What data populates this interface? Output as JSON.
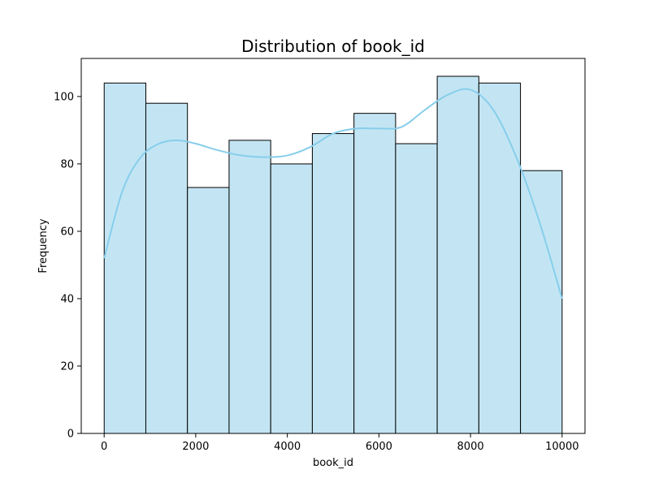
{
  "chart_data": {
    "type": "bar",
    "title": "Distribution of book_id",
    "xlabel": "book_id",
    "ylabel": "Frequency",
    "xlim": [
      -500,
      10500
    ],
    "ylim": [
      0,
      111.3
    ],
    "xticks": [
      0,
      2000,
      4000,
      6000,
      8000,
      10000
    ],
    "yticks": [
      0,
      20,
      40,
      60,
      80,
      100
    ],
    "bins": [
      {
        "x0": 1,
        "x1": 910,
        "count": 104
      },
      {
        "x0": 910,
        "x1": 1819,
        "count": 98
      },
      {
        "x0": 1819,
        "x1": 2728,
        "count": 73
      },
      {
        "x0": 2728,
        "x1": 3637,
        "count": 87
      },
      {
        "x0": 3637,
        "x1": 4546,
        "count": 80
      },
      {
        "x0": 4546,
        "x1": 5455,
        "count": 89
      },
      {
        "x0": 5455,
        "x1": 6364,
        "count": 95
      },
      {
        "x0": 6364,
        "x1": 7273,
        "count": 86
      },
      {
        "x0": 7273,
        "x1": 8182,
        "count": 106
      },
      {
        "x0": 8182,
        "x1": 9091,
        "count": 104
      },
      {
        "x0": 9091,
        "x1": 10000,
        "count": 78
      }
    ],
    "kde": {
      "x": [
        1,
        400,
        800,
        1200,
        1600,
        2000,
        2500,
        3000,
        3500,
        4000,
        4500,
        5000,
        5500,
        6000,
        6500,
        7000,
        7500,
        8000,
        8500,
        9000,
        9500,
        10000
      ],
      "y": [
        52,
        72,
        82,
        86,
        87,
        86,
        84,
        82.5,
        82,
        82.5,
        85,
        89,
        90.5,
        90.5,
        91,
        96,
        100.5,
        102,
        96,
        82,
        63,
        40
      ]
    },
    "grid": false,
    "colors": {
      "bar_fill": "#c3e5f3",
      "bar_edge": "#000000",
      "kde_line": "#87ceeb"
    }
  }
}
